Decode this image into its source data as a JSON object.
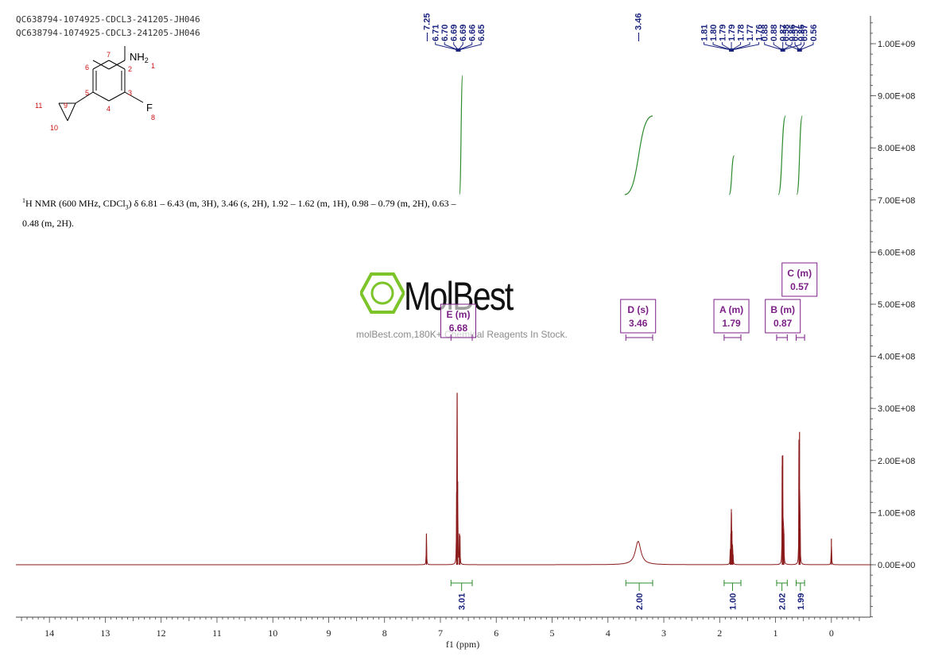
{
  "header": {
    "sample_id_1": "QC638794-1074925-CDCL3-241205-JH046",
    "sample_id_2": "QC638794-1074925-CDCL3-241205-JH046"
  },
  "structure": {
    "nh2_label": "NH",
    "nh2_subscript": "2",
    "f_label": "F",
    "atom_numbers": [
      "1",
      "2",
      "3",
      "4",
      "5",
      "6",
      "7",
      "8",
      "9",
      "10",
      "11"
    ]
  },
  "nmr_summary": {
    "prefix": "H NMR (600 MHz, CDCl",
    "suffix": ") δ 6.81 – 6.43 (m, 3H), 3.46 (s, 2H), 1.92 – 1.62 (m, 1H), 0.98 – 0.79 (m, 2H), 0.63 – 0.48 (m, 2H)."
  },
  "watermark": {
    "brand": "MolBest",
    "url_text": "molBest.com,180K+ Chemical Reagents In Stock."
  },
  "colors": {
    "spectrum": "#8b1a1a",
    "peak_labels": "#1a237e",
    "integral": "#2e8b2e",
    "multiplet_box": "#7b1f86",
    "axis": "#444444",
    "logo_green": "#7cc42a"
  },
  "chart_data": {
    "type": "line",
    "xlabel": "f1 (ppm)",
    "xlim": [
      14.6,
      -0.7
    ],
    "x_ticks": [
      "14",
      "13",
      "12",
      "11",
      "10",
      "9",
      "8",
      "7",
      "6",
      "5",
      "4",
      "3",
      "2",
      "1",
      "0"
    ],
    "ylim": [
      -105000000.0,
      1050000000.0
    ],
    "y_ticks": [
      "1.00E+09",
      "9.00E+08",
      "8.00E+08",
      "7.00E+08",
      "6.00E+08",
      "5.00E+08",
      "4.00E+08",
      "3.00E+08",
      "2.00E+08",
      "1.00E+08",
      "0.00E+00"
    ],
    "y_tick_values": [
      1000000000.0,
      900000000.0,
      800000000.0,
      700000000.0,
      600000000.0,
      500000000.0,
      400000000.0,
      300000000.0,
      200000000.0,
      100000000.0,
      0
    ],
    "peaks": [
      {
        "ppm": 7.25,
        "height": 60000000.0,
        "width": 0.004
      },
      {
        "ppm": 6.71,
        "height": 140000000.0,
        "width": 0.003
      },
      {
        "ppm": 6.7,
        "height": 330000000.0,
        "width": 0.003
      },
      {
        "ppm": 6.69,
        "height": 160000000.0,
        "width": 0.003
      },
      {
        "ppm": 6.66,
        "height": 60000000.0,
        "width": 0.003
      },
      {
        "ppm": 6.65,
        "height": 55000000.0,
        "width": 0.003
      },
      {
        "ppm": 3.46,
        "height": 45000000.0,
        "width": 0.06
      },
      {
        "ppm": 1.81,
        "height": 30000000.0,
        "width": 0.003
      },
      {
        "ppm": 1.8,
        "height": 60000000.0,
        "width": 0.003
      },
      {
        "ppm": 1.79,
        "height": 100000000.0,
        "width": 0.003
      },
      {
        "ppm": 1.78,
        "height": 65000000.0,
        "width": 0.003
      },
      {
        "ppm": 1.77,
        "height": 30000000.0,
        "width": 0.003
      },
      {
        "ppm": 1.76,
        "height": 20000000.0,
        "width": 0.003
      },
      {
        "ppm": 0.88,
        "height": 190000000.0,
        "width": 0.003
      },
      {
        "ppm": 0.87,
        "height": 210000000.0,
        "width": 0.003
      },
      {
        "ppm": 0.86,
        "height": 70000000.0,
        "width": 0.003
      },
      {
        "ppm": 0.85,
        "height": 60000000.0,
        "width": 0.003
      },
      {
        "ppm": 0.58,
        "height": 240000000.0,
        "width": 0.003
      },
      {
        "ppm": 0.57,
        "height": 255000000.0,
        "width": 0.003
      },
      {
        "ppm": 0.56,
        "height": 70000000.0,
        "width": 0.003
      },
      {
        "ppm": 0.0,
        "height": 50000000.0,
        "width": 0.004
      }
    ],
    "peak_label_groups": [
      {
        "labels": [
          "7.25"
        ],
        "anchor_ppm": 7.25
      },
      {
        "labels": [
          "6.71",
          "6.70",
          "6.69",
          "6.69",
          "6.66",
          "6.65"
        ],
        "anchor_ppm": 6.68
      },
      {
        "labels": [
          "3.46"
        ],
        "anchor_ppm": 3.46
      },
      {
        "labels": [
          "1.81",
          "1.80",
          "1.79",
          "1.79",
          "1.78",
          "1.77",
          "1.76"
        ],
        "anchor_ppm": 1.79
      },
      {
        "labels": [
          "0.88",
          "0.88",
          "0.87",
          "0.86",
          "0.85"
        ],
        "anchor_ppm": 0.87
      },
      {
        "labels": [
          "0.58",
          "0.57",
          "0.57",
          "0.56"
        ],
        "anchor_ppm": 0.57
      }
    ],
    "integrals": [
      {
        "from": 6.81,
        "to": 6.43,
        "value": "3.01"
      },
      {
        "from": 3.68,
        "to": 3.2,
        "value": "2.00"
      },
      {
        "from": 1.92,
        "to": 1.62,
        "value": "1.00"
      },
      {
        "from": 0.98,
        "to": 0.79,
        "value": "2.02"
      },
      {
        "from": 0.63,
        "to": 0.48,
        "value": "1.99"
      }
    ],
    "multiplets": [
      {
        "label": "E (m)",
        "shift": "6.68",
        "from": 6.81,
        "to": 6.43,
        "center": 6.68
      },
      {
        "label": "D (s)",
        "shift": "3.46",
        "from": 3.68,
        "to": 3.2,
        "center": 3.46
      },
      {
        "label": "A (m)",
        "shift": "1.79",
        "from": 1.92,
        "to": 1.62,
        "center": 1.79
      },
      {
        "label": "B (m)",
        "shift": "0.87",
        "from": 0.98,
        "to": 0.79,
        "center": 0.87
      },
      {
        "label": "C (m)",
        "shift": "0.57",
        "from": 0.63,
        "to": 0.48,
        "center": 0.57
      }
    ]
  }
}
